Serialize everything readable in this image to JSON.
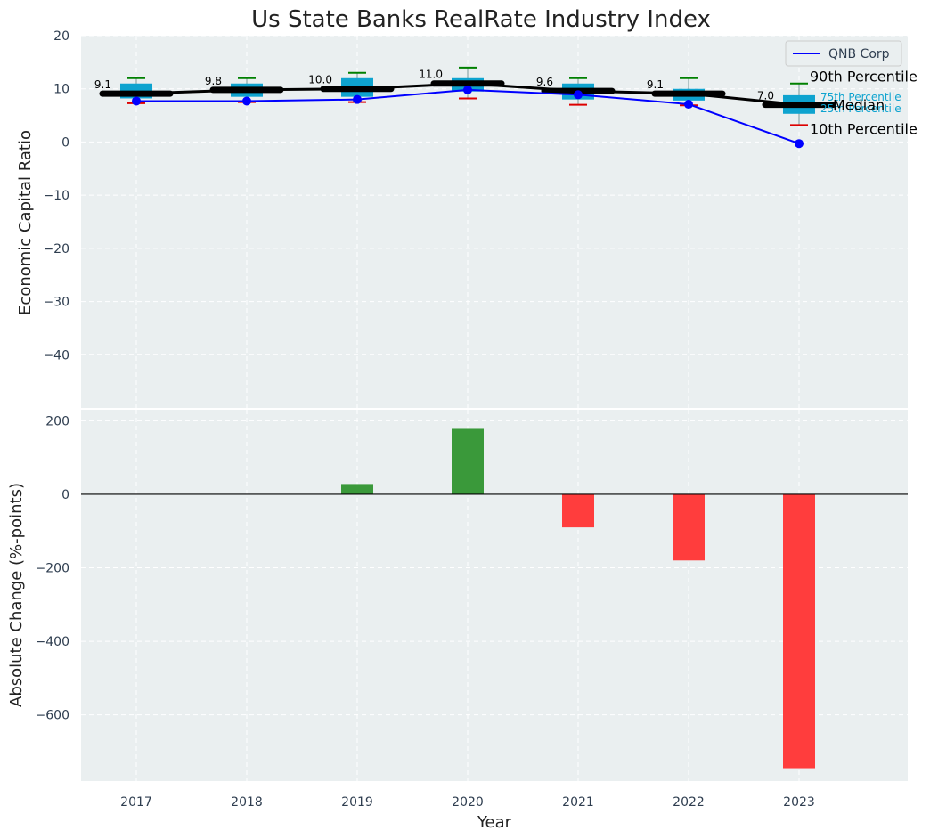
{
  "title": "Us State Banks RealRate Industry Index",
  "colors": {
    "background": "#eaeff0",
    "box": "#0ea3cf",
    "median": "#000000",
    "company": "#0000ff",
    "p90": "#008000",
    "p10": "#dd0000",
    "positive": "#3a993a",
    "negative": "#ff3d3d"
  },
  "chart_data": [
    {
      "type": "box",
      "title": "Us State Banks RealRate Industry Index",
      "xlabel": "",
      "ylabel": "Economic Capital Ratio",
      "ylim": [
        -50,
        20
      ],
      "yticks": [
        20,
        10,
        0,
        -10,
        -20,
        -30,
        -40
      ],
      "ytick_labels": [
        "20",
        "10",
        "0",
        "−10",
        "−20",
        "−30",
        "−40"
      ],
      "grid": true,
      "categories": [
        "2017",
        "2018",
        "2019",
        "2020",
        "2021",
        "2022",
        "2023"
      ],
      "percentiles": {
        "p10": [
          7.3,
          7.5,
          7.5,
          8.2,
          7.0,
          6.9,
          3.2
        ],
        "p25": [
          8.2,
          8.5,
          8.5,
          9.5,
          8.0,
          7.8,
          5.3
        ],
        "median": [
          9.1,
          9.8,
          10.0,
          11.0,
          9.6,
          9.1,
          7.0
        ],
        "p75": [
          11.0,
          11.0,
          12.0,
          12.0,
          11.0,
          10.0,
          8.8
        ],
        "p90": [
          12.0,
          12.0,
          13.0,
          14.0,
          12.0,
          12.0,
          11.0
        ]
      },
      "median_labels": [
        "9.1",
        "9.8",
        "10.0",
        "11.0",
        "9.6",
        "9.1",
        "7.0"
      ],
      "series": [
        {
          "name": "QNB Corp",
          "values": [
            7.7,
            7.7,
            8.0,
            9.8,
            8.9,
            7.1,
            -0.3
          ]
        }
      ],
      "legend": {
        "placement": "top-right",
        "entries": [
          "QNB Corp"
        ]
      },
      "annotations": {
        "p90": "90th Percentile",
        "p75": "75th Percentile",
        "median": "Median",
        "p25": "25th Percentile",
        "p10": "10th Percentile"
      }
    },
    {
      "type": "bar",
      "xlabel": "Year",
      "ylabel": "Absolute Change (%-points)",
      "ylim": [
        -780,
        230
      ],
      "yticks": [
        200,
        0,
        -200,
        -400,
        -600
      ],
      "ytick_labels": [
        "200",
        "0",
        "−200",
        "−400",
        "−600"
      ],
      "grid": true,
      "categories": [
        "2017",
        "2018",
        "2019",
        "2020",
        "2021",
        "2022",
        "2023"
      ],
      "values": [
        0,
        0,
        28,
        178,
        -90,
        -180,
        -745
      ]
    }
  ]
}
